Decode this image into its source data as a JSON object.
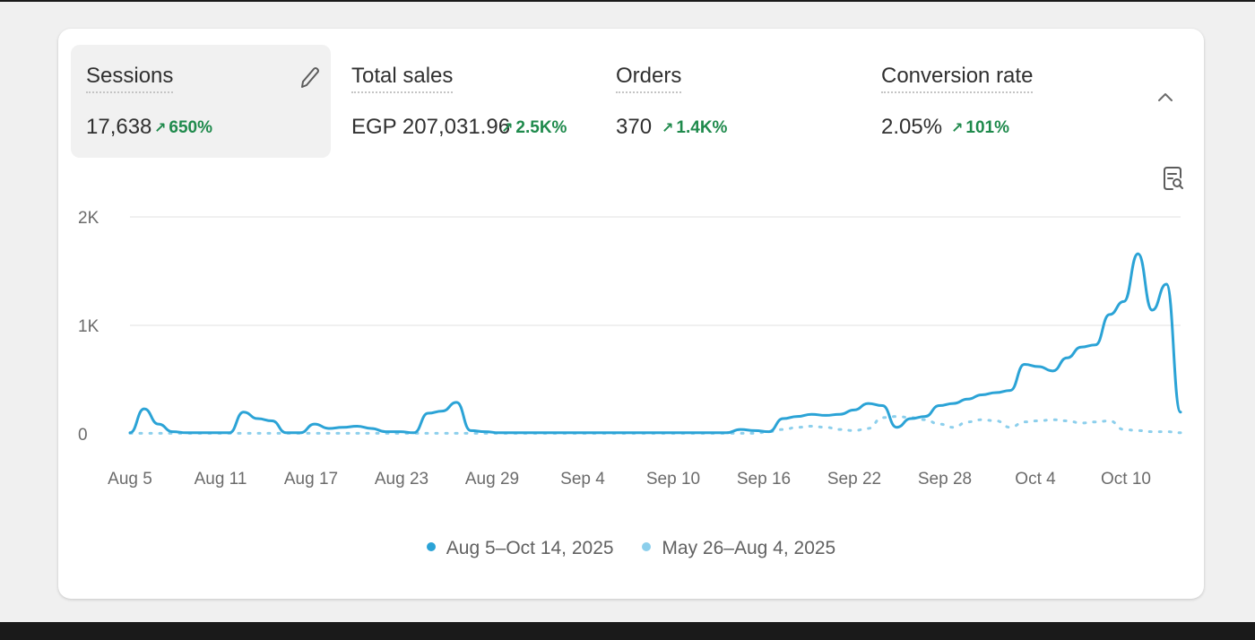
{
  "colors": {
    "current_series": "#2ba3d6",
    "previous_series": "#8ccfec",
    "positive_change": "#1f8a4c",
    "gridline": "#ececec"
  },
  "metrics": [
    {
      "label": "Sessions",
      "value": "17,638",
      "change": "650%",
      "active": true
    },
    {
      "label": "Total sales",
      "value": "EGP 207,031.96",
      "change": "2.5K%"
    },
    {
      "label": "Orders",
      "value": "370",
      "change": "1.4K%"
    },
    {
      "label": "Conversion rate",
      "value": "2.05%",
      "change": "101%"
    }
  ],
  "icons": {
    "edit": "pencil-icon",
    "collapse": "chevron-up-icon",
    "export": "report-search-icon",
    "trend": "arrow-up-right-icon"
  },
  "chart_data": {
    "type": "line",
    "title": "",
    "xlabel": "",
    "ylabel": "",
    "ylim": [
      0,
      2000
    ],
    "yticks": [
      0,
      1000,
      2000
    ],
    "ytick_labels": [
      "0",
      "1K",
      "2K"
    ],
    "xtick_labels": [
      "Aug 5",
      "Aug 11",
      "Aug 17",
      "Aug 23",
      "Aug 29",
      "Sep 4",
      "Sep 10",
      "Sep 16",
      "Sep 22",
      "Sep 28",
      "Oct 4",
      "Oct 10"
    ],
    "x_start_label": "Aug 5",
    "x_end_label": "Oct 14",
    "grid": true,
    "legend_position": "bottom-center",
    "series": [
      {
        "name": "Aug 5–Oct 14, 2025",
        "style": "solid",
        "values": [
          10,
          230,
          90,
          20,
          10,
          10,
          10,
          10,
          200,
          140,
          120,
          10,
          10,
          90,
          50,
          60,
          70,
          50,
          20,
          20,
          10,
          190,
          210,
          290,
          30,
          20,
          10,
          10,
          10,
          10,
          10,
          10,
          10,
          10,
          10,
          10,
          10,
          10,
          10,
          10,
          10,
          10,
          10,
          40,
          30,
          20,
          140,
          160,
          180,
          170,
          180,
          220,
          280,
          260,
          60,
          140,
          160,
          260,
          280,
          320,
          360,
          380,
          400,
          640,
          620,
          580,
          700,
          800,
          820,
          1100,
          1220,
          1660,
          1140,
          1380,
          200
        ]
      },
      {
        "name": "May 26–Aug 4, 2025",
        "style": "dotted",
        "values": [
          5,
          5,
          5,
          5,
          5,
          5,
          5,
          5,
          5,
          5,
          5,
          5,
          5,
          5,
          5,
          5,
          5,
          5,
          5,
          5,
          5,
          5,
          5,
          5,
          5,
          5,
          5,
          5,
          5,
          5,
          5,
          5,
          5,
          5,
          5,
          5,
          5,
          5,
          5,
          5,
          5,
          5,
          5,
          5,
          5,
          20,
          40,
          60,
          70,
          60,
          40,
          30,
          50,
          150,
          160,
          150,
          130,
          90,
          60,
          110,
          130,
          120,
          60,
          110,
          120,
          130,
          120,
          100,
          110,
          120,
          40,
          30,
          20,
          20,
          10
        ]
      }
    ]
  },
  "legend": [
    {
      "label": "Aug 5–Oct 14, 2025",
      "color": "#2ba3d6"
    },
    {
      "label": "May 26–Aug 4, 2025",
      "color": "#8ccfec"
    }
  ]
}
